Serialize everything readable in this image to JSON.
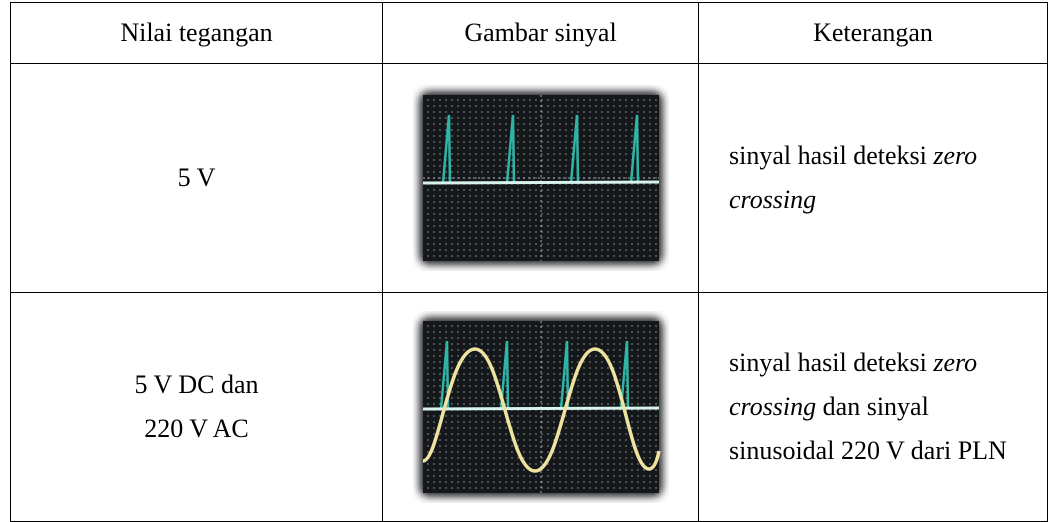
{
  "table": {
    "header": [
      "Nilai tegangan",
      "Gambar sinyal",
      "Keterangan"
    ],
    "rows": [
      {
        "voltage": [
          "5 V"
        ],
        "description": [
          {
            "text": "sinyal hasil deteksi ",
            "italic": false
          },
          {
            "text": "zero crossing",
            "italic": true
          }
        ]
      },
      {
        "voltage": [
          "5 V DC dan",
          "220 V AC"
        ],
        "description": [
          {
            "text": "sinyal hasil deteksi ",
            "italic": false
          },
          {
            "text": "zero crossing",
            "italic": true
          },
          {
            "text": " dan sinyal sinusoidal 220 V dari PLN",
            "italic": false
          }
        ]
      }
    ]
  }
}
